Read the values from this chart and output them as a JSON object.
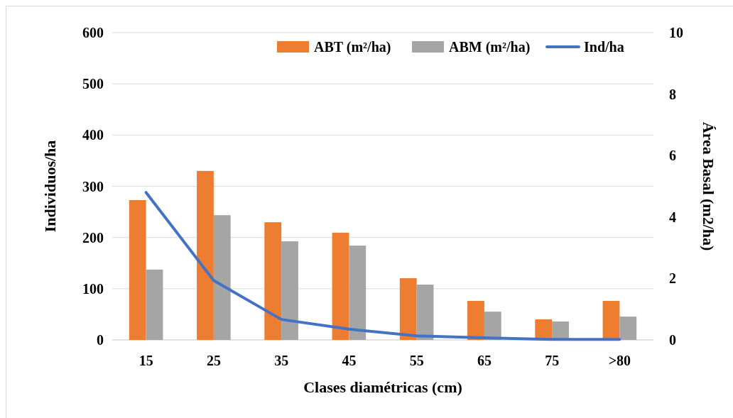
{
  "chart_data": {
    "type": "bar",
    "xlabel": "Clases diamétricas (cm)",
    "ylabel": "Individuos/ha",
    "y2label": "Área Basal (m2/ha)",
    "categories": [
      "15",
      "25",
      "35",
      "45",
      "55",
      "65",
      "75",
      ">80"
    ],
    "series": [
      {
        "name": "ABT (m²/ha)",
        "color": "#ed7d31",
        "axis": "y2",
        "values": [
          4.55,
          5.5,
          3.83,
          3.49,
          2.01,
          1.27,
          0.67,
          1.27
        ]
      },
      {
        "name": "ABM (m²/ha)",
        "color": "#a5a5a5",
        "axis": "y2",
        "values": [
          2.29,
          4.06,
          3.21,
          3.07,
          1.8,
          0.92,
          0.6,
          0.76
        ]
      },
      {
        "name": "Ind/ha",
        "color": "#4472c4",
        "type": "line",
        "values": [
          288,
          116,
          40,
          21,
          8,
          4,
          1,
          1
        ]
      }
    ],
    "ylim": [
      0,
      600
    ],
    "yticks": [
      0,
      100,
      200,
      300,
      400,
      500,
      600
    ],
    "y2lim": [
      0,
      10
    ],
    "y2ticks": [
      0,
      2,
      4,
      6,
      8,
      10
    ],
    "grid": "y",
    "legend": "top right",
    "marker": "none",
    "line_style": "solid"
  }
}
